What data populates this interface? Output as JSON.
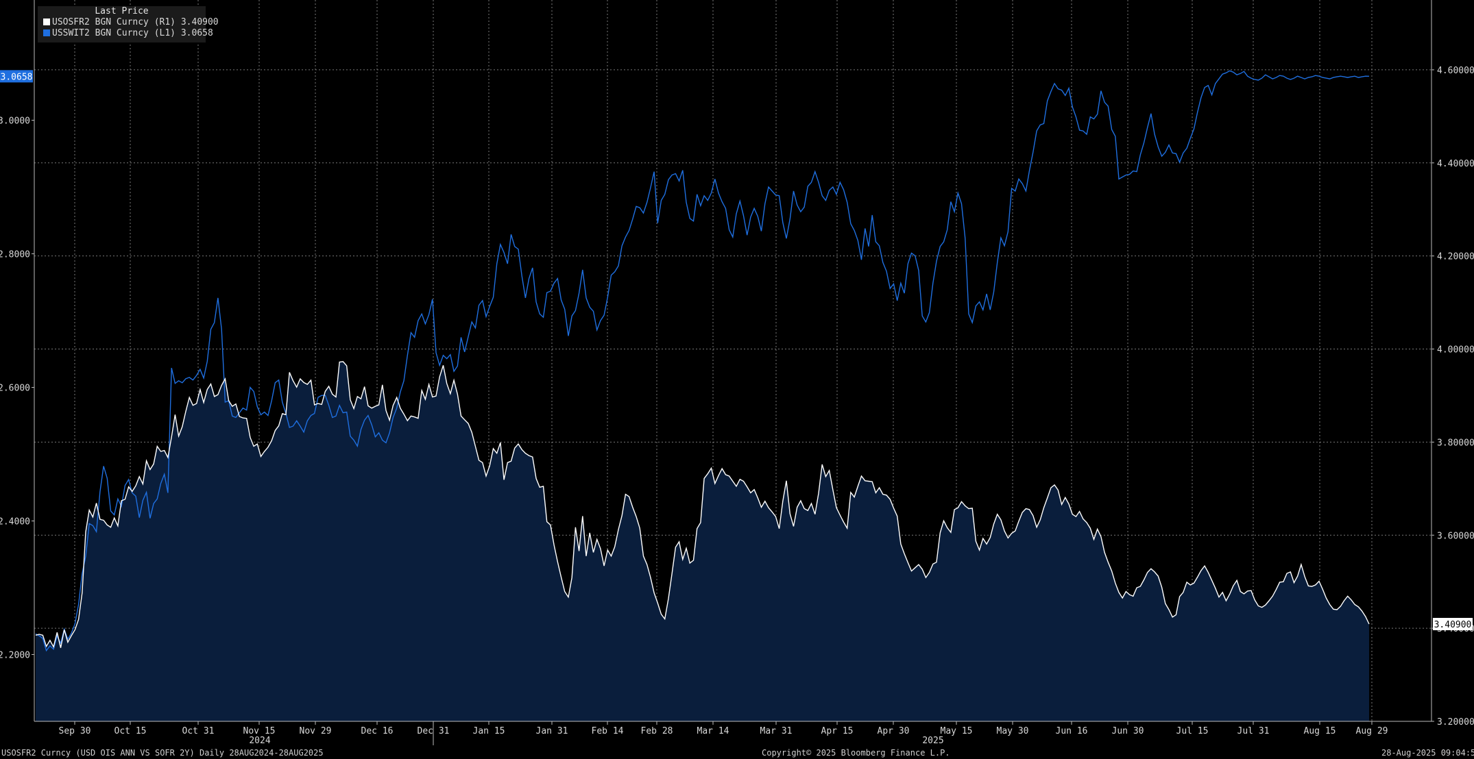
{
  "legend": {
    "title": "Last Price",
    "series": [
      {
        "label": "USOSFR2 BGN Curncy  (R1) 3.40900",
        "color": "#ffffff"
      },
      {
        "label": "USSWIT2 BGN Curncy  (L1) 3.0658",
        "color": "#1f6fe0"
      }
    ]
  },
  "footer": {
    "left": "USOSFR2 Curncy (USD OIS  ANN VS SOFR 2Y)  Daily 28AUG2024-28AUG2025",
    "center": "Copyright© 2025 Bloomberg Finance L.P.",
    "right": "28-Aug-2025 09:04:53"
  },
  "chart_data": {
    "type": "line",
    "x_tick_labels": [
      "Sep 30",
      "Oct 15",
      "Oct 31",
      "Nov 15",
      "Nov 29",
      "Dec 16",
      "Dec 31",
      "Jan 15",
      "Jan 31",
      "Feb 14",
      "Feb 28",
      "Mar 14",
      "Mar 31",
      "Apr 15",
      "Apr 30",
      "May 15",
      "May 30",
      "Jun 16",
      "Jun 30",
      "Jul 15",
      "Jul 31",
      "Aug 15",
      "Aug 29"
    ],
    "year_labels": [
      "2024",
      "2025"
    ],
    "left_axis": {
      "ylim": [
        2.1,
        3.18
      ],
      "ticks": [
        2.2,
        2.4,
        2.6,
        2.8,
        3.0
      ],
      "tick_labels": [
        "2.2000",
        "2.4000",
        "2.6000",
        "2.8000",
        "3.0000"
      ],
      "last_value_label": "3.0658"
    },
    "right_axis": {
      "ylim": [
        3.2,
        4.75
      ],
      "ticks": [
        3.2,
        3.4,
        3.6,
        3.8,
        4.0,
        4.2,
        4.4,
        4.6
      ],
      "tick_labels": [
        "3.20000",
        "3.40000",
        "3.60000",
        "3.80000",
        "4.00000",
        "4.20000",
        "4.40000",
        "4.60000"
      ],
      "last_value_label": "3.40900"
    },
    "grid": true,
    "series": [
      {
        "name": "USOSFR2 BGN Curncy",
        "axis": "right",
        "color": "#ffffff",
        "area_fill": "#0a1e3c",
        "values": [
          3.385,
          3.387,
          3.385,
          3.361,
          3.374,
          3.36,
          3.391,
          3.358,
          3.397,
          3.37,
          3.384,
          3.397,
          3.419,
          3.476,
          3.607,
          3.654,
          3.639,
          3.669,
          3.634,
          3.632,
          3.622,
          3.617,
          3.637,
          3.62,
          3.674,
          3.677,
          3.704,
          3.694,
          3.706,
          3.726,
          3.71,
          3.76,
          3.741,
          3.753,
          3.791,
          3.78,
          3.782,
          3.767,
          3.811,
          3.859,
          3.813,
          3.833,
          3.866,
          3.896,
          3.879,
          3.883,
          3.913,
          3.885,
          3.913,
          3.925,
          3.898,
          3.902,
          3.922,
          3.936,
          3.889,
          3.877,
          3.882,
          3.855,
          3.852,
          3.851,
          3.81,
          3.791,
          3.796,
          3.769,
          3.78,
          3.789,
          3.803,
          3.825,
          3.835,
          3.861,
          3.859,
          3.95,
          3.932,
          3.918,
          3.936,
          3.928,
          3.924,
          3.933,
          3.88,
          3.883,
          3.881,
          3.909,
          3.92,
          3.903,
          3.897,
          3.972,
          3.973,
          3.964,
          3.891,
          3.872,
          3.898,
          3.893,
          3.919,
          3.878,
          3.873,
          3.877,
          3.88,
          3.923,
          3.868,
          3.847,
          3.879,
          3.896,
          3.873,
          3.86,
          3.846,
          3.856,
          3.854,
          3.851,
          3.911,
          3.892,
          3.924,
          3.897,
          3.899,
          3.94,
          3.965,
          3.926,
          3.904,
          3.933,
          3.903,
          3.856,
          3.848,
          3.84,
          3.821,
          3.791,
          3.761,
          3.756,
          3.727,
          3.749,
          3.786,
          3.776,
          3.799,
          3.719,
          3.756,
          3.759,
          3.787,
          3.796,
          3.784,
          3.776,
          3.771,
          3.768,
          3.722,
          3.703,
          3.705,
          3.629,
          3.622,
          3.579,
          3.543,
          3.51,
          3.479,
          3.467,
          3.509,
          3.617,
          3.566,
          3.641,
          3.555,
          3.605,
          3.563,
          3.591,
          3.571,
          3.534,
          3.568,
          3.555,
          3.575,
          3.612,
          3.642,
          3.688,
          3.683,
          3.66,
          3.64,
          3.615,
          3.555,
          3.537,
          3.509,
          3.476,
          3.454,
          3.43,
          3.42,
          3.464,
          3.518,
          3.574,
          3.586,
          3.548,
          3.572,
          3.54,
          3.546,
          3.614,
          3.627,
          3.722,
          3.732,
          3.744,
          3.711,
          3.728,
          3.743,
          3.73,
          3.727,
          3.716,
          3.705,
          3.72,
          3.716,
          3.704,
          3.691,
          3.698,
          3.68,
          3.66,
          3.673,
          3.659,
          3.65,
          3.64,
          3.614,
          3.673,
          3.717,
          3.646,
          3.619,
          3.66,
          3.674,
          3.657,
          3.653,
          3.668,
          3.645,
          3.69,
          3.752,
          3.726,
          3.739,
          3.698,
          3.659,
          3.643,
          3.628,
          3.615,
          3.692,
          3.682,
          3.705,
          3.727,
          3.717,
          3.716,
          3.715,
          3.691,
          3.702,
          3.688,
          3.686,
          3.677,
          3.658,
          3.641,
          3.581,
          3.56,
          3.541,
          3.523,
          3.53,
          3.537,
          3.527,
          3.509,
          3.52,
          3.538,
          3.542,
          3.605,
          3.631,
          3.616,
          3.606,
          3.655,
          3.659,
          3.672,
          3.663,
          3.657,
          3.658,
          3.587,
          3.568,
          3.593,
          3.581,
          3.595,
          3.624,
          3.645,
          3.633,
          3.609,
          3.594,
          3.604,
          3.609,
          3.63,
          3.649,
          3.657,
          3.655,
          3.642,
          3.617,
          3.633,
          3.659,
          3.68,
          3.702,
          3.708,
          3.697,
          3.666,
          3.681,
          3.667,
          3.645,
          3.64,
          3.651,
          3.635,
          3.627,
          3.615,
          3.591,
          3.613,
          3.597,
          3.563,
          3.542,
          3.523,
          3.497,
          3.477,
          3.465,
          3.479,
          3.472,
          3.469,
          3.487,
          3.49,
          3.504,
          3.52,
          3.528,
          3.521,
          3.512,
          3.488,
          3.453,
          3.44,
          3.424,
          3.429,
          3.468,
          3.477,
          3.499,
          3.493,
          3.497,
          3.51,
          3.524,
          3.534,
          3.52,
          3.503,
          3.486,
          3.467,
          3.477,
          3.459,
          3.473,
          3.491,
          3.503,
          3.479,
          3.474,
          3.48,
          3.481,
          3.461,
          3.448,
          3.445,
          3.45,
          3.459,
          3.469,
          3.483,
          3.499,
          3.5,
          3.518,
          3.521,
          3.498,
          3.512,
          3.537,
          3.511,
          3.491,
          3.49,
          3.493,
          3.501,
          3.484,
          3.465,
          3.451,
          3.441,
          3.44,
          3.447,
          3.459,
          3.469,
          3.461,
          3.451,
          3.446,
          3.437,
          3.425,
          3.409
        ]
      },
      {
        "name": "USSWIT2 BGN Curncy",
        "axis": "left",
        "color": "#1f6fe0",
        "values": [
          2.231,
          2.228,
          2.224,
          2.206,
          2.213,
          2.208,
          2.228,
          2.217,
          2.238,
          2.223,
          2.232,
          2.246,
          2.275,
          2.321,
          2.347,
          2.396,
          2.393,
          2.384,
          2.444,
          2.482,
          2.464,
          2.415,
          2.409,
          2.433,
          2.422,
          2.453,
          2.462,
          2.442,
          2.437,
          2.405,
          2.431,
          2.443,
          2.404,
          2.426,
          2.433,
          2.456,
          2.47,
          2.442,
          2.629,
          2.606,
          2.61,
          2.607,
          2.613,
          2.615,
          2.611,
          2.618,
          2.627,
          2.614,
          2.639,
          2.687,
          2.697,
          2.734,
          2.687,
          2.578,
          2.58,
          2.557,
          2.555,
          2.562,
          2.569,
          2.566,
          2.6,
          2.594,
          2.571,
          2.559,
          2.563,
          2.558,
          2.58,
          2.607,
          2.611,
          2.578,
          2.561,
          2.54,
          2.542,
          2.55,
          2.542,
          2.533,
          2.55,
          2.558,
          2.561,
          2.585,
          2.588,
          2.588,
          2.573,
          2.555,
          2.557,
          2.573,
          2.562,
          2.563,
          2.527,
          2.521,
          2.512,
          2.537,
          2.551,
          2.558,
          2.544,
          2.526,
          2.532,
          2.521,
          2.517,
          2.532,
          2.555,
          2.569,
          2.593,
          2.61,
          2.648,
          2.682,
          2.675,
          2.7,
          2.71,
          2.695,
          2.709,
          2.732,
          2.652,
          2.633,
          2.648,
          2.643,
          2.649,
          2.624,
          2.632,
          2.675,
          2.653,
          2.676,
          2.698,
          2.689,
          2.723,
          2.73,
          2.706,
          2.721,
          2.735,
          2.785,
          2.814,
          2.802,
          2.785,
          2.829,
          2.811,
          2.807,
          2.767,
          2.734,
          2.763,
          2.779,
          2.728,
          2.71,
          2.705,
          2.742,
          2.744,
          2.756,
          2.763,
          2.731,
          2.717,
          2.677,
          2.707,
          2.715,
          2.741,
          2.776,
          2.734,
          2.72,
          2.714,
          2.686,
          2.7,
          2.708,
          2.735,
          2.768,
          2.773,
          2.782,
          2.812,
          2.825,
          2.835,
          2.852,
          2.871,
          2.869,
          2.861,
          2.877,
          2.899,
          2.923,
          2.846,
          2.88,
          2.889,
          2.911,
          2.918,
          2.92,
          2.909,
          2.925,
          2.877,
          2.853,
          2.849,
          2.889,
          2.872,
          2.887,
          2.88,
          2.891,
          2.912,
          2.891,
          2.878,
          2.868,
          2.836,
          2.825,
          2.86,
          2.879,
          2.857,
          2.828,
          2.855,
          2.868,
          2.856,
          2.834,
          2.875,
          2.9,
          2.894,
          2.888,
          2.887,
          2.847,
          2.823,
          2.852,
          2.894,
          2.873,
          2.863,
          2.87,
          2.901,
          2.907,
          2.923,
          2.907,
          2.887,
          2.88,
          2.895,
          2.9,
          2.889,
          2.907,
          2.896,
          2.877,
          2.845,
          2.835,
          2.82,
          2.791,
          2.838,
          2.811,
          2.858,
          2.818,
          2.812,
          2.787,
          2.774,
          2.748,
          2.755,
          2.73,
          2.756,
          2.741,
          2.785,
          2.801,
          2.797,
          2.775,
          2.707,
          2.698,
          2.712,
          2.756,
          2.789,
          2.811,
          2.818,
          2.836,
          2.878,
          2.863,
          2.891,
          2.875,
          2.823,
          2.71,
          2.697,
          2.722,
          2.728,
          2.716,
          2.74,
          2.716,
          2.743,
          2.787,
          2.824,
          2.812,
          2.833,
          2.898,
          2.894,
          2.912,
          2.905,
          2.894,
          2.925,
          2.952,
          2.984,
          2.993,
          2.995,
          3.029,
          3.043,
          3.055,
          3.047,
          3.045,
          3.037,
          3.048,
          3.02,
          3.005,
          2.985,
          2.984,
          2.979,
          3.005,
          3.002,
          3.009,
          3.044,
          3.027,
          3.021,
          2.986,
          2.976,
          2.912,
          2.915,
          2.918,
          2.919,
          2.924,
          2.923,
          2.948,
          2.966,
          2.989,
          3.01,
          2.979,
          2.96,
          2.946,
          2.952,
          2.963,
          2.951,
          2.95,
          2.937,
          2.951,
          2.958,
          2.973,
          2.987,
          3.012,
          3.034,
          3.049,
          3.052,
          3.038,
          3.055,
          3.062,
          3.069,
          3.071,
          3.074,
          3.072,
          3.068,
          3.07,
          3.073,
          3.066,
          3.063,
          3.061,
          3.06,
          3.063,
          3.068,
          3.065,
          3.062,
          3.064,
          3.067,
          3.066,
          3.063,
          3.061,
          3.063,
          3.066,
          3.064,
          3.062,
          3.064,
          3.065,
          3.067,
          3.066,
          3.064,
          3.063,
          3.062,
          3.064,
          3.065,
          3.066,
          3.065,
          3.064,
          3.065,
          3.066,
          3.064,
          3.065,
          3.066,
          3.0658
        ]
      }
    ]
  }
}
